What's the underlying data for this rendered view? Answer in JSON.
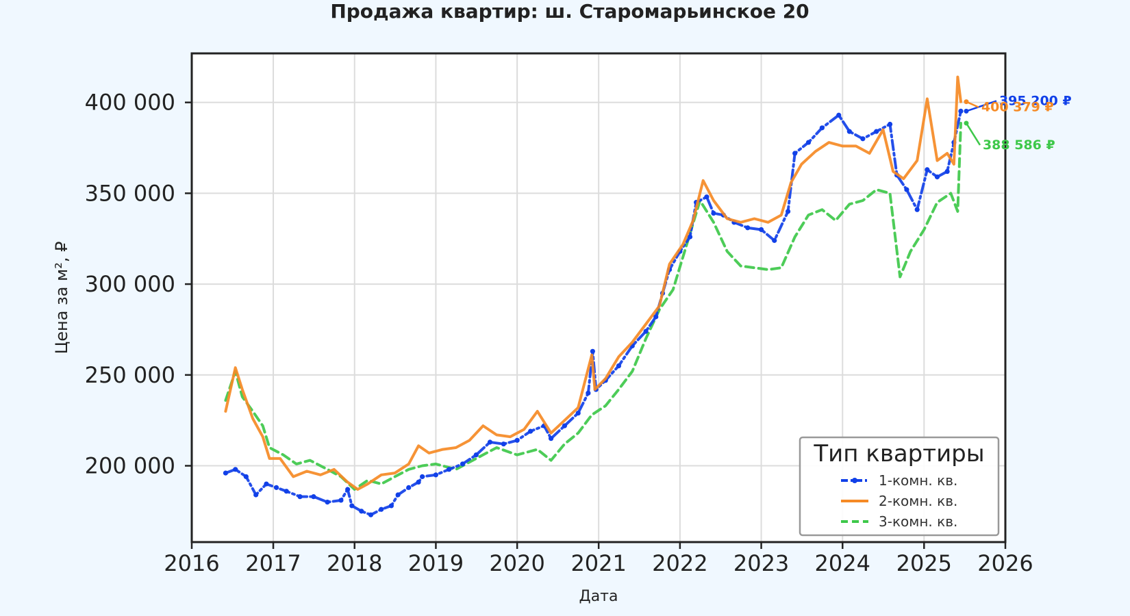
{
  "chart_data": {
    "type": "line",
    "title": "Продажа квартир: ш. Старомарьинское 20",
    "xlabel": "Дата",
    "ylabel": "Цена за м², ₽",
    "x_ticks": [
      "2016",
      "2017",
      "2018",
      "2019",
      "2020",
      "2021",
      "2022",
      "2023",
      "2024",
      "2025",
      "2026"
    ],
    "y_ticks": [
      "200 000",
      "250 000",
      "300 000",
      "350 000",
      "400 000"
    ],
    "xlim": [
      "2016-01-01",
      "2026-01-01"
    ],
    "ylim": [
      158000,
      427000
    ],
    "grid": true,
    "legend": {
      "title": "Тип квартиры",
      "position": "lower-right"
    },
    "series": [
      {
        "name": "1-комн. кв.",
        "color": "#1140e8",
        "style": "dashdot-markers",
        "final_label": "395 200 ₽",
        "points": [
          [
            "2016-06-01",
            196000
          ],
          [
            "2016-07-15",
            198000
          ],
          [
            "2016-09-01",
            194000
          ],
          [
            "2016-10-15",
            184000
          ],
          [
            "2016-12-01",
            190000
          ],
          [
            "2017-01-15",
            188000
          ],
          [
            "2017-03-01",
            186000
          ],
          [
            "2017-05-01",
            183000
          ],
          [
            "2017-07-01",
            183000
          ],
          [
            "2017-09-01",
            180000
          ],
          [
            "2017-11-01",
            181000
          ],
          [
            "2017-12-01",
            187000
          ],
          [
            "2017-12-20",
            178000
          ],
          [
            "2018-02-01",
            175000
          ],
          [
            "2018-03-15",
            173000
          ],
          [
            "2018-05-01",
            176000
          ],
          [
            "2018-06-15",
            178000
          ],
          [
            "2018-07-15",
            184000
          ],
          [
            "2018-09-01",
            188000
          ],
          [
            "2018-10-15",
            191000
          ],
          [
            "2018-11-01",
            194000
          ],
          [
            "2019-01-01",
            195000
          ],
          [
            "2019-03-01",
            198000
          ],
          [
            "2019-05-01",
            201000
          ],
          [
            "2019-07-01",
            206000
          ],
          [
            "2019-09-01",
            213000
          ],
          [
            "2019-11-01",
            212000
          ],
          [
            "2020-01-01",
            214000
          ],
          [
            "2020-03-01",
            219000
          ],
          [
            "2020-05-01",
            222000
          ],
          [
            "2020-06-01",
            215000
          ],
          [
            "2020-08-01",
            222000
          ],
          [
            "2020-10-01",
            229000
          ],
          [
            "2020-11-15",
            240000
          ],
          [
            "2020-12-05",
            263000
          ],
          [
            "2020-12-20",
            242000
          ],
          [
            "2021-02-01",
            247000
          ],
          [
            "2021-04-01",
            255000
          ],
          [
            "2021-06-01",
            266000
          ],
          [
            "2021-08-01",
            274000
          ],
          [
            "2021-09-15",
            282000
          ],
          [
            "2021-10-15",
            295000
          ],
          [
            "2021-11-15",
            308000
          ],
          [
            "2022-01-01",
            318000
          ],
          [
            "2022-02-15",
            326000
          ],
          [
            "2022-03-15",
            345000
          ],
          [
            "2022-05-01",
            348000
          ],
          [
            "2022-06-01",
            339000
          ],
          [
            "2022-07-15",
            338000
          ],
          [
            "2022-09-01",
            334000
          ],
          [
            "2022-11-01",
            331000
          ],
          [
            "2023-01-01",
            330000
          ],
          [
            "2023-03-01",
            324000
          ],
          [
            "2023-05-01",
            340000
          ],
          [
            "2023-06-01",
            372000
          ],
          [
            "2023-08-01",
            378000
          ],
          [
            "2023-10-01",
            386000
          ],
          [
            "2023-12-15",
            393000
          ],
          [
            "2024-02-01",
            384000
          ],
          [
            "2024-04-01",
            380000
          ],
          [
            "2024-06-01",
            384000
          ],
          [
            "2024-08-01",
            388000
          ],
          [
            "2024-09-01",
            360000
          ],
          [
            "2024-10-15",
            352000
          ],
          [
            "2024-12-01",
            341000
          ],
          [
            "2025-01-15",
            363000
          ],
          [
            "2025-03-01",
            359000
          ],
          [
            "2025-04-15",
            362000
          ],
          [
            "2025-05-15",
            378000
          ],
          [
            "2025-06-15",
            395200
          ]
        ]
      },
      {
        "name": "2-комн. кв.",
        "color": "#f58a25",
        "style": "solid",
        "final_label": "400 379 ₽",
        "points": [
          [
            "2016-06-01",
            230000
          ],
          [
            "2016-07-15",
            254000
          ],
          [
            "2016-08-15",
            242000
          ],
          [
            "2016-10-01",
            226000
          ],
          [
            "2016-11-15",
            216000
          ],
          [
            "2016-12-15",
            204000
          ],
          [
            "2017-02-01",
            204000
          ],
          [
            "2017-04-01",
            194000
          ],
          [
            "2017-06-01",
            197000
          ],
          [
            "2017-08-01",
            195000
          ],
          [
            "2017-10-01",
            198000
          ],
          [
            "2017-12-01",
            191000
          ],
          [
            "2018-01-15",
            187000
          ],
          [
            "2018-03-01",
            190000
          ],
          [
            "2018-05-01",
            195000
          ],
          [
            "2018-07-01",
            196000
          ],
          [
            "2018-09-01",
            201000
          ],
          [
            "2018-10-15",
            211000
          ],
          [
            "2018-12-01",
            207000
          ],
          [
            "2019-02-01",
            209000
          ],
          [
            "2019-04-01",
            210000
          ],
          [
            "2019-06-01",
            214000
          ],
          [
            "2019-08-01",
            222000
          ],
          [
            "2019-10-01",
            217000
          ],
          [
            "2019-12-01",
            216000
          ],
          [
            "2020-02-01",
            220000
          ],
          [
            "2020-04-01",
            230000
          ],
          [
            "2020-06-01",
            218000
          ],
          [
            "2020-08-01",
            225000
          ],
          [
            "2020-10-01",
            232000
          ],
          [
            "2020-12-01",
            261000
          ],
          [
            "2020-12-15",
            242000
          ],
          [
            "2021-02-01",
            248000
          ],
          [
            "2021-04-01",
            260000
          ],
          [
            "2021-06-01",
            268000
          ],
          [
            "2021-08-01",
            278000
          ],
          [
            "2021-10-01",
            288000
          ],
          [
            "2021-11-15",
            311000
          ],
          [
            "2022-01-15",
            322000
          ],
          [
            "2022-03-01",
            335000
          ],
          [
            "2022-04-15",
            357000
          ],
          [
            "2022-06-01",
            346000
          ],
          [
            "2022-08-01",
            336000
          ],
          [
            "2022-10-01",
            334000
          ],
          [
            "2022-12-01",
            336000
          ],
          [
            "2023-02-01",
            334000
          ],
          [
            "2023-04-01",
            338000
          ],
          [
            "2023-05-15",
            356000
          ],
          [
            "2023-07-01",
            366000
          ],
          [
            "2023-09-01",
            373000
          ],
          [
            "2023-11-01",
            378000
          ],
          [
            "2024-01-01",
            376000
          ],
          [
            "2024-03-01",
            376000
          ],
          [
            "2024-05-01",
            372000
          ],
          [
            "2024-07-01",
            385000
          ],
          [
            "2024-08-15",
            362000
          ],
          [
            "2024-10-01",
            358000
          ],
          [
            "2024-12-01",
            368000
          ],
          [
            "2025-01-15",
            402000
          ],
          [
            "2025-03-01",
            368000
          ],
          [
            "2025-04-15",
            372000
          ],
          [
            "2025-05-15",
            366000
          ],
          [
            "2025-06-01",
            414000
          ],
          [
            "2025-06-15",
            400379
          ]
        ]
      },
      {
        "name": "3-комн. кв.",
        "color": "#3ec84a",
        "style": "dashed",
        "final_label": "388 586 ₽",
        "points": [
          [
            "2016-06-01",
            236000
          ],
          [
            "2016-07-15",
            252000
          ],
          [
            "2016-08-15",
            238000
          ],
          [
            "2016-10-01",
            230000
          ],
          [
            "2016-11-15",
            222000
          ],
          [
            "2016-12-15",
            210000
          ],
          [
            "2017-02-15",
            206000
          ],
          [
            "2017-04-15",
            201000
          ],
          [
            "2017-06-15",
            203000
          ],
          [
            "2017-09-01",
            198000
          ],
          [
            "2017-11-01",
            194000
          ],
          [
            "2018-01-01",
            187000
          ],
          [
            "2018-03-01",
            192000
          ],
          [
            "2018-05-01",
            190000
          ],
          [
            "2018-07-01",
            194000
          ],
          [
            "2018-09-01",
            198000
          ],
          [
            "2018-11-01",
            200000
          ],
          [
            "2019-01-01",
            201000
          ],
          [
            "2019-04-01",
            198000
          ],
          [
            "2019-07-01",
            204000
          ],
          [
            "2019-10-01",
            210000
          ],
          [
            "2020-01-01",
            206000
          ],
          [
            "2020-04-01",
            209000
          ],
          [
            "2020-06-01",
            203000
          ],
          [
            "2020-08-01",
            212000
          ],
          [
            "2020-10-01",
            218000
          ],
          [
            "2020-12-01",
            228000
          ],
          [
            "2021-02-01",
            233000
          ],
          [
            "2021-04-01",
            242000
          ],
          [
            "2021-06-01",
            252000
          ],
          [
            "2021-08-01",
            270000
          ],
          [
            "2021-10-01",
            286000
          ],
          [
            "2021-12-01",
            297000
          ],
          [
            "2022-02-01",
            322000
          ],
          [
            "2022-04-01",
            346000
          ],
          [
            "2022-06-01",
            334000
          ],
          [
            "2022-08-01",
            318000
          ],
          [
            "2022-10-01",
            310000
          ],
          [
            "2022-12-01",
            309000
          ],
          [
            "2023-02-01",
            308000
          ],
          [
            "2023-04-01",
            309000
          ],
          [
            "2023-06-01",
            326000
          ],
          [
            "2023-08-01",
            338000
          ],
          [
            "2023-10-01",
            341000
          ],
          [
            "2023-12-01",
            335000
          ],
          [
            "2024-02-01",
            344000
          ],
          [
            "2024-04-01",
            346000
          ],
          [
            "2024-06-01",
            352000
          ],
          [
            "2024-08-01",
            350000
          ],
          [
            "2024-09-15",
            304000
          ],
          [
            "2024-11-01",
            318000
          ],
          [
            "2025-01-01",
            330000
          ],
          [
            "2025-03-01",
            345000
          ],
          [
            "2025-05-01",
            350000
          ],
          [
            "2025-06-01",
            340000
          ],
          [
            "2025-06-15",
            388586
          ]
        ]
      }
    ]
  }
}
